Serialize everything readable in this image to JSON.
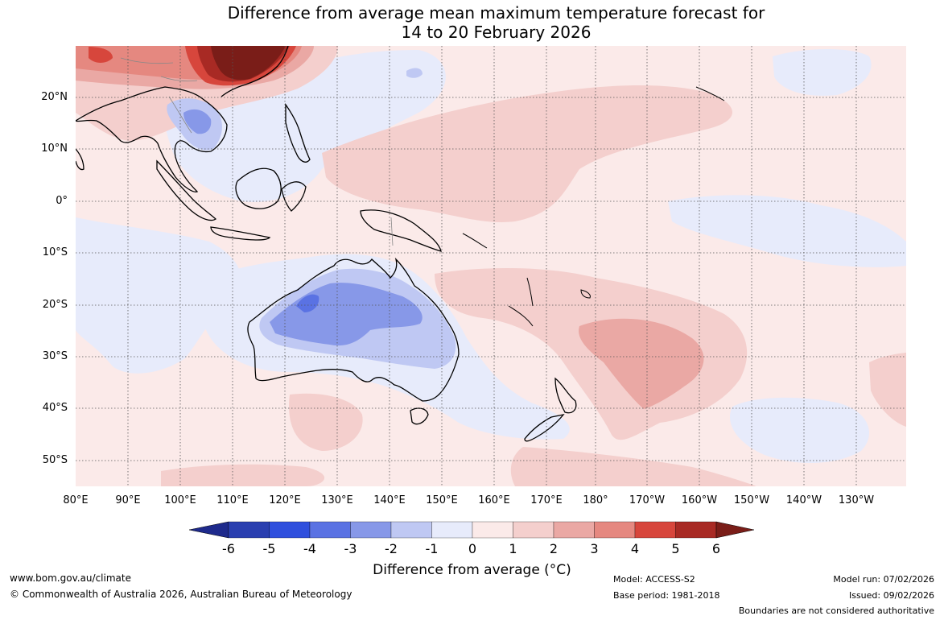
{
  "title": {
    "line1": "Difference from average mean maximum temperature forecast for",
    "line2": "14 to 20 February 2026"
  },
  "map": {
    "lat_labels": [
      "20°N",
      "10°N",
      "0°",
      "10°S",
      "20°S",
      "30°S",
      "40°S",
      "50°S"
    ],
    "lon_labels": [
      "80°E",
      "90°E",
      "100°E",
      "110°E",
      "120°E",
      "130°E",
      "140°E",
      "150°E",
      "160°E",
      "170°E",
      "180°",
      "170°W",
      "160°W",
      "150°W",
      "140°W",
      "130°W"
    ],
    "gridlines": true,
    "graticule_style": "dotted"
  },
  "colorbar": {
    "labels": [
      "-6",
      "-5",
      "-4",
      "-3",
      "-2",
      "-1",
      "0",
      "1",
      "2",
      "3",
      "4",
      "5",
      "6"
    ],
    "title": "Difference from average (°C)",
    "colors": [
      "#1e2a8c",
      "#2a3fb0",
      "#2f4fdd",
      "#5a72e3",
      "#8798e8",
      "#bfc8f3",
      "#e7ebfb",
      "#fbeae9",
      "#f4cfcd",
      "#eaa8a4",
      "#e58880",
      "#d7463c",
      "#a82a24",
      "#7a1d18"
    ]
  },
  "footer": {
    "url": "www.bom.gov.au/climate",
    "copyright": "© Commonwealth of Australia 2026, Australian Bureau of Meteorology",
    "model": "Model: ACCESS-S2",
    "base_period": "Base period: 1981-2018",
    "model_run": "Model run: 07/02/2026",
    "issued": "Issued: 09/02/2026",
    "disclaimer": "Boundaries are not considered authoritative"
  }
}
